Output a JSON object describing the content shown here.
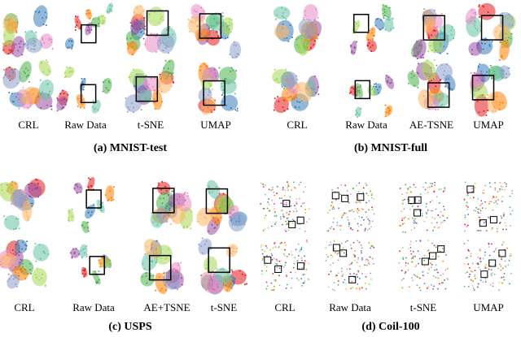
{
  "panels": [
    {
      "caption": "(a) MNIST-test",
      "columns": [
        "CRL",
        "Raw Data",
        "t-SNE",
        "UMAP"
      ]
    },
    {
      "caption": "(b) MNIST-full",
      "columns": [
        "CRL",
        "Raw Data",
        "AE-TSNE",
        "UMAP"
      ]
    },
    {
      "caption": "(c) USPS",
      "columns": [
        "CRL",
        "Raw Data",
        "AE+TSNE",
        "t-SNE"
      ]
    },
    {
      "caption": "(d) Coil-100",
      "columns": [
        "CRL",
        "Raw Data",
        "t-SNE",
        "UMAP"
      ]
    }
  ]
}
